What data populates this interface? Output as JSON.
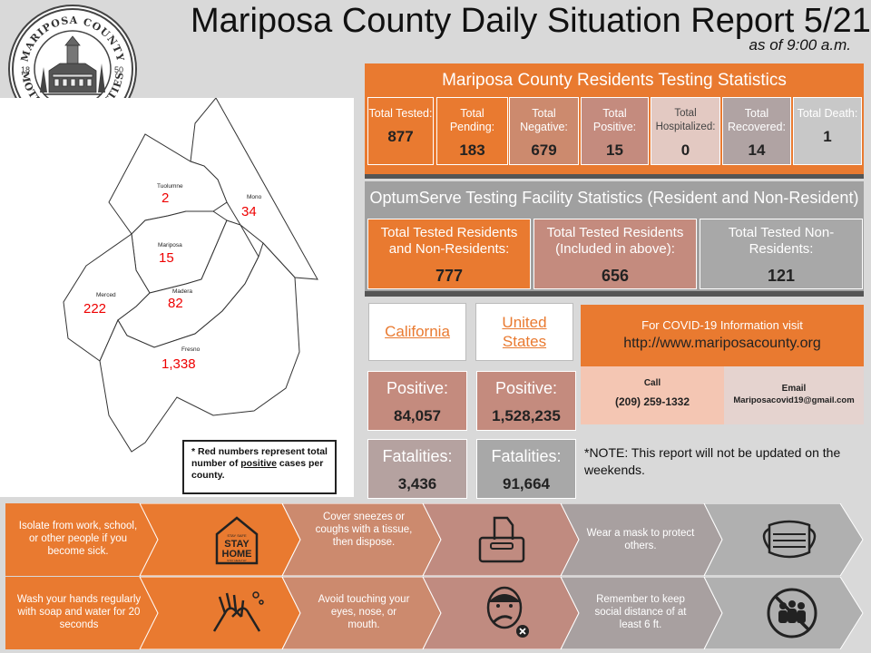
{
  "header": {
    "title": "Mariposa County Daily Situation Report 5/21",
    "subtitle": "as of 9:00 a.m."
  },
  "seal": {
    "top_text": "MARIPOSA COUNTY",
    "bottom_text": "MOTHER OF COUNTIES",
    "left_year": "18",
    "right_year": "50"
  },
  "map": {
    "counties": [
      {
        "name": "Tuolumne",
        "value": "2"
      },
      {
        "name": "Mono",
        "value": "34"
      },
      {
        "name": "Mariposa",
        "value": "15"
      },
      {
        "name": "Merced",
        "value": "222"
      },
      {
        "name": "Madera",
        "value": "82"
      },
      {
        "name": "Fresno",
        "value": "1,338"
      }
    ],
    "note_prefix": "* Red numbers represent total number of ",
    "note_emph": "positive",
    "note_suffix": " cases per county."
  },
  "testing": {
    "title": "Mariposa County Residents Testing Statistics",
    "stats": [
      {
        "label": "Total Tested:",
        "value": "877"
      },
      {
        "label": "Total Pending:",
        "value": "183"
      },
      {
        "label": "Total Negative:",
        "value": "679"
      },
      {
        "label": "Total Positive:",
        "value": "15"
      },
      {
        "label": "Total Hospitalized:",
        "value": "0"
      },
      {
        "label": "Total Recovered:",
        "value": "14"
      },
      {
        "label": "Total Death:",
        "value": "1"
      }
    ]
  },
  "optum": {
    "title": "OptumServe Testing Facility Statistics (Resident and Non-Resident)",
    "boxes": [
      {
        "label": "Total Tested Residents and Non-Residents:",
        "value": "777"
      },
      {
        "label": "Total Tested Residents (Included in above):",
        "value": "656"
      },
      {
        "label": "Total Tested Non-Residents:",
        "value": "121"
      }
    ]
  },
  "california": {
    "link": "California",
    "positive_label": "Positive:",
    "positive": "84,057",
    "fatal_label": "Fatalities:",
    "fatal": "3,436"
  },
  "us": {
    "link": "United States",
    "positive_label": "Positive:",
    "positive": "1,528,235",
    "fatal_label": "Fatalities:",
    "fatal": "91,664"
  },
  "info": {
    "visit": "For COVID-19 Information visit",
    "url": "http://www.mariposacounty.org",
    "call_label": "Call",
    "phone": "(209) 259-1332",
    "email_label": "Email",
    "email": "Mariposacovid19@gmail.com"
  },
  "note": "*NOTE: This report will not be updated on the weekends.",
  "tips": {
    "row1": [
      "Isolate from work, school, or other people if you become sick.",
      "Cover sneezes or coughs with a tissue, then dispose.",
      "Wear a mask to protect others."
    ],
    "row2": [
      "Wash your hands regularly with soap and water for 20 seconds",
      "Avoid touching your eyes, nose, or mouth.",
      "Remember to keep social distance of at least 6 ft."
    ],
    "stay_small": "STAY SAFE",
    "stay_big1": "STAY",
    "stay_big2": "HOME",
    "stay_tiny": "STAY HEALTHY"
  },
  "colors": {
    "orange": "#e97a30",
    "mauve": "#b98a80",
    "gray": "#a09a9a",
    "pink": "#f4c6b3"
  }
}
